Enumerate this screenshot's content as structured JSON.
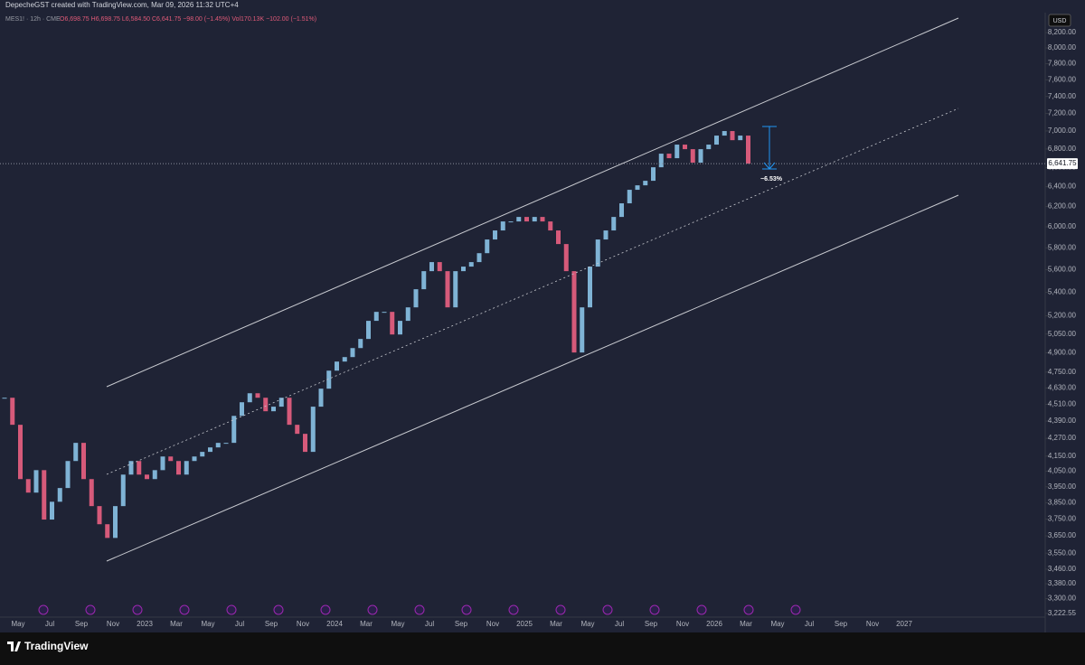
{
  "chart_data": {
    "type": "candlestick",
    "title": "DepecheGST created with TradingView.com, Mar 09, 2026 11:32 UTC+4",
    "symbol": "MES1! · 12h · CME",
    "ohlc_text": "O6,698.75 H6,698.75 L6,584.50 C6,641.75 −98.00 (−1.45%) Vol170.13K −102.00 (−1.51%)",
    "currency": "USD",
    "annotation": "−6.53%",
    "brand": "TradingView",
    "log_scale": true,
    "up_color": "#7fb3d5",
    "down_color": "#d65a7a",
    "last_price": {
      "value": 6641.75,
      "label": "6,641.75"
    },
    "time_labels": [
      "May",
      "Jul",
      "Sep",
      "Nov",
      "2023",
      "Mar",
      "May",
      "Jul",
      "Sep",
      "Nov",
      "2024",
      "Mar",
      "May",
      "Jul",
      "Sep",
      "Nov",
      "2025",
      "Mar",
      "May",
      "Jul",
      "Sep",
      "Nov",
      "2026",
      "Mar",
      "May",
      "Jul",
      "Sep",
      "Nov",
      "2027"
    ],
    "ylim": [
      3203,
      8467
    ],
    "yticks": [
      {
        "value": 8200,
        "label": "8,200.00"
      },
      {
        "value": 8000,
        "label": "8,000.00"
      },
      {
        "value": 7800,
        "label": "7,800.00"
      },
      {
        "value": 7600,
        "label": "7,600.00"
      },
      {
        "value": 7400,
        "label": "7,400.00"
      },
      {
        "value": 7200,
        "label": "7,200.00"
      },
      {
        "value": 7000,
        "label": "7,000.00"
      },
      {
        "value": 6800,
        "label": "6,800.00"
      },
      {
        "value": 6600,
        "label": "6,600.00"
      },
      {
        "value": 6400,
        "label": "6,400.00"
      },
      {
        "value": 6200,
        "label": "6,200.00"
      },
      {
        "value": 6000,
        "label": "6,000.00"
      },
      {
        "value": 5800,
        "label": "5,800.00"
      },
      {
        "value": 5600,
        "label": "5,600.00"
      },
      {
        "value": 5400,
        "label": "5,400.00"
      },
      {
        "value": 5200,
        "label": "5,200.00"
      },
      {
        "value": 5050,
        "label": "5,050.00"
      },
      {
        "value": 4900,
        "label": "4,900.00"
      },
      {
        "value": 4750,
        "label": "4,750.00"
      },
      {
        "value": 4630,
        "label": "4,630.00"
      },
      {
        "value": 4510,
        "label": "4,510.00"
      },
      {
        "value": 4390,
        "label": "4,390.00"
      },
      {
        "value": 4270,
        "label": "4,270.00"
      },
      {
        "value": 4150,
        "label": "4,150.00"
      },
      {
        "value": 4050,
        "label": "4,050.00"
      },
      {
        "value": 3950,
        "label": "3,950.00"
      },
      {
        "value": 3850,
        "label": "3,850.00"
      },
      {
        "value": 3750,
        "label": "3,750.00"
      },
      {
        "value": 3650,
        "label": "3,650.00"
      },
      {
        "value": 3550,
        "label": "3,550.00"
      },
      {
        "value": 3460,
        "label": "3,460.00"
      },
      {
        "value": 3380,
        "label": "3,380.00"
      },
      {
        "value": 3300,
        "label": "3,300.00"
      },
      {
        "value": 3222.55,
        "label": "3,222.55"
      }
    ],
    "close": [
      4558,
      4364,
      3999,
      3913,
      4057,
      3747,
      3856,
      3942,
      4117,
      4239,
      3999,
      3829,
      3719,
      3638,
      3829,
      4028,
      4117,
      4028,
      3999,
      4057,
      4147,
      4117,
      4028,
      4117,
      4147,
      4178,
      4208,
      4239,
      4239,
      4427,
      4525,
      4591,
      4558,
      4460,
      4493,
      4558,
      4364,
      4301,
      4178,
      4493,
      4625,
      4761,
      4831,
      4866,
      4937,
      5010,
      5158,
      5233,
      5233,
      5046,
      5158,
      5271,
      5427,
      5587,
      5669,
      5587,
      5271,
      5587,
      5628,
      5669,
      5751,
      5879,
      5965,
      6052,
      6052,
      6096,
      6052,
      6096,
      6052,
      5965,
      5836,
      5587,
      4902,
      5271,
      5628,
      5879,
      5965,
      6096,
      6231,
      6368,
      6414,
      6461,
      6603,
      6749,
      6700,
      6848,
      6798,
      6652,
      6798,
      6848,
      6948,
      6999,
      6897,
      6948,
      6641.75
    ]
  }
}
